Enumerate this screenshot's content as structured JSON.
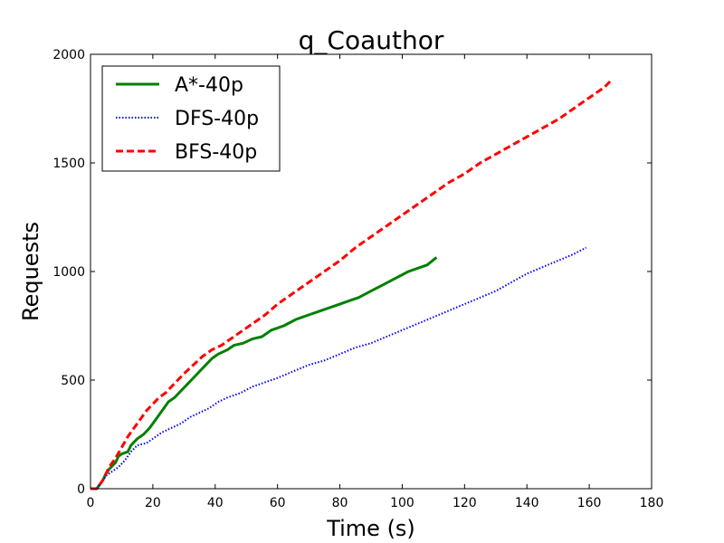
{
  "chart_data": {
    "type": "line",
    "title": "q_Coauthor",
    "xlabel": "Time (s)",
    "ylabel": "Requests",
    "xlim": [
      0,
      180
    ],
    "ylim": [
      0,
      2000
    ],
    "xticks": [
      0,
      20,
      40,
      60,
      80,
      100,
      120,
      140,
      160,
      180
    ],
    "yticks": [
      0,
      500,
      1000,
      1500,
      2000
    ],
    "grid": false,
    "legend_position": "top-left",
    "series": [
      {
        "name": "A*-40p",
        "color": "#008000",
        "style": "solid",
        "x": [
          0,
          2,
          3,
          4,
          5,
          6,
          8,
          9,
          10,
          12,
          13,
          15,
          17,
          19,
          21,
          23,
          25,
          27,
          29,
          31,
          33,
          35,
          37,
          39,
          41,
          44,
          46,
          49,
          52,
          55,
          58,
          62,
          66,
          70,
          74,
          78,
          82,
          86,
          90,
          94,
          98,
          102,
          106,
          108,
          111
        ],
        "y": [
          0,
          0,
          20,
          40,
          70,
          90,
          120,
          150,
          160,
          170,
          200,
          230,
          250,
          280,
          320,
          360,
          400,
          420,
          450,
          480,
          510,
          540,
          570,
          600,
          620,
          640,
          660,
          670,
          690,
          700,
          730,
          750,
          780,
          800,
          820,
          840,
          860,
          880,
          910,
          940,
          970,
          1000,
          1020,
          1030,
          1065
        ]
      },
      {
        "name": "DFS-40p",
        "color": "#0000ff",
        "style": "dotted",
        "x": [
          0,
          2,
          3,
          4,
          5,
          7,
          9,
          11,
          13,
          15,
          18,
          20,
          23,
          26,
          29,
          32,
          35,
          38,
          41,
          44,
          48,
          52,
          56,
          60,
          65,
          70,
          75,
          80,
          85,
          90,
          95,
          100,
          105,
          110,
          115,
          120,
          125,
          130,
          135,
          140,
          145,
          150,
          155,
          159
        ],
        "y": [
          0,
          0,
          20,
          40,
          60,
          80,
          100,
          130,
          170,
          200,
          210,
          230,
          260,
          280,
          300,
          330,
          350,
          370,
          400,
          420,
          440,
          470,
          490,
          510,
          540,
          570,
          590,
          620,
          650,
          670,
          700,
          730,
          760,
          790,
          820,
          850,
          880,
          910,
          950,
          990,
          1020,
          1050,
          1080,
          1110
        ]
      },
      {
        "name": "BFS-40p",
        "color": "#ff0000",
        "style": "dashed",
        "x": [
          0,
          2,
          3,
          4,
          5,
          6,
          8,
          10,
          12,
          14,
          16,
          18,
          20,
          22,
          24,
          26,
          28,
          30,
          33,
          36,
          39,
          42,
          45,
          48,
          52,
          56,
          60,
          65,
          70,
          75,
          80,
          85,
          90,
          95,
          100,
          105,
          110,
          115,
          120,
          125,
          130,
          135,
          140,
          145,
          150,
          155,
          160,
          165,
          167
        ],
        "y": [
          0,
          0,
          20,
          40,
          70,
          100,
          140,
          190,
          240,
          280,
          320,
          360,
          390,
          420,
          440,
          470,
          500,
          530,
          570,
          610,
          640,
          660,
          690,
          720,
          760,
          800,
          850,
          900,
          950,
          1000,
          1050,
          1110,
          1160,
          1210,
          1260,
          1310,
          1360,
          1410,
          1450,
          1500,
          1540,
          1580,
          1620,
          1660,
          1700,
          1750,
          1800,
          1850,
          1880
        ]
      }
    ]
  }
}
